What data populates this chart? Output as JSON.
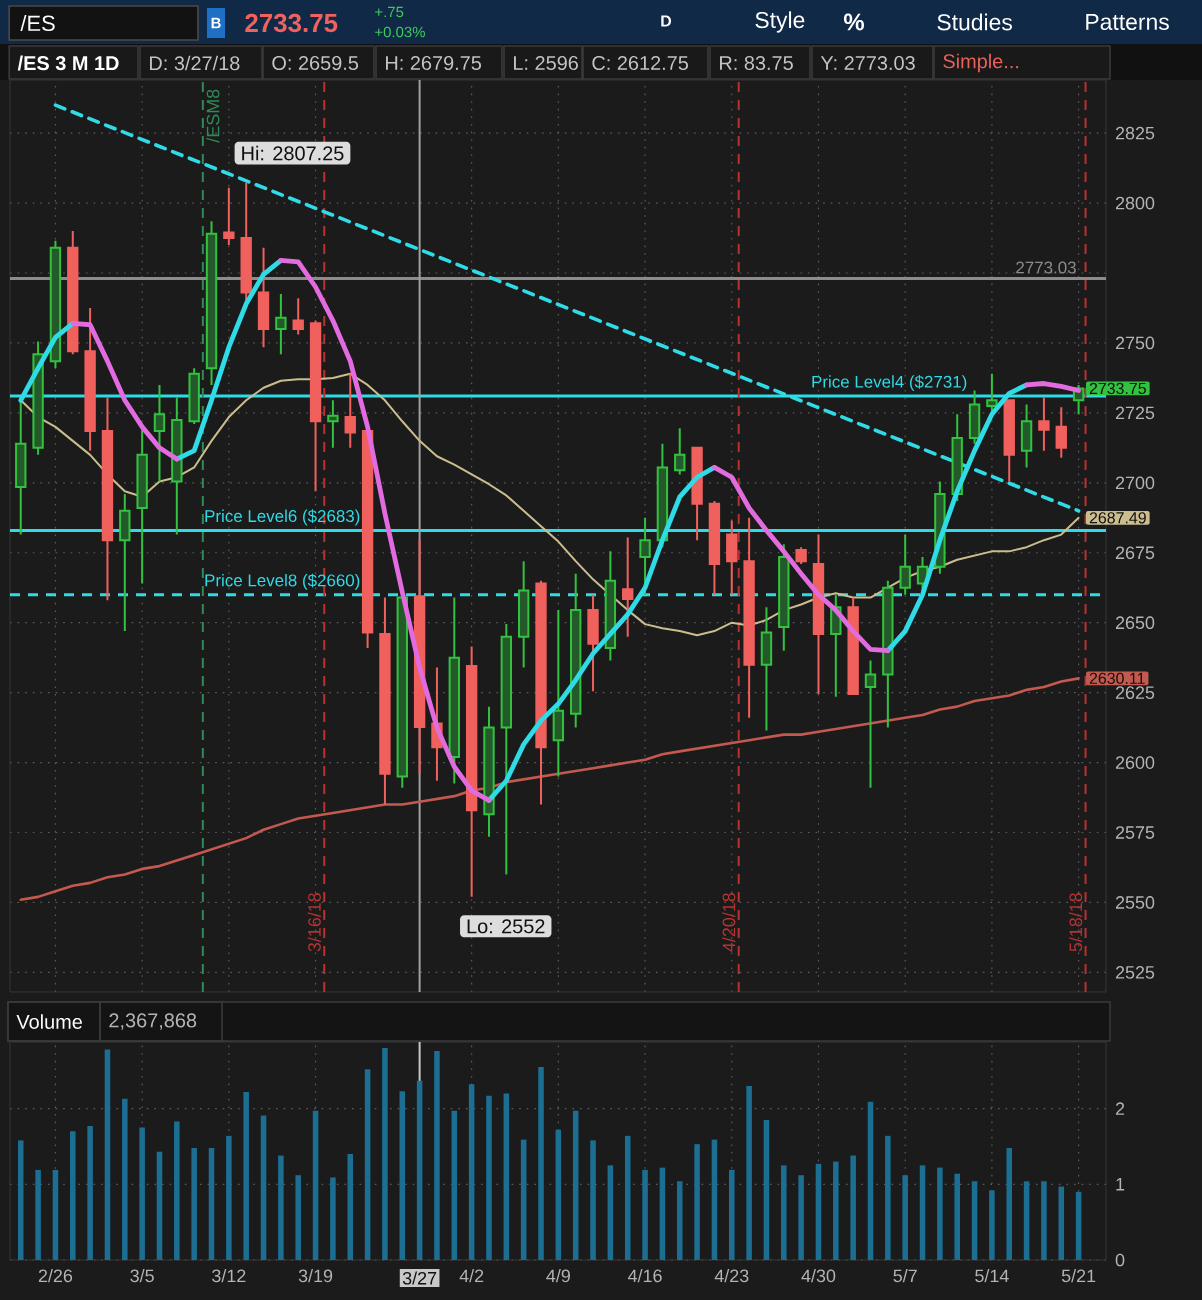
{
  "chart_data": [
    {
      "type": "other",
      "annotations": [
        "/ES",
        "B",
        "2733.75",
        "+.75",
        "+0.03%",
        "D",
        "Style",
        "%",
        "Studies",
        "Patterns"
      ]
    },
    {
      "type": "other",
      "title": "/ES 3 M 1D",
      "annotations": [
        "D: 3/27/18",
        "O: 2659.5",
        "H: 2679.75",
        "L: 2596",
        "C: 2612.75",
        "R: 83.75",
        "Y: 2773.03",
        "Simple..."
      ]
    },
    {
      "type": "candlestick",
      "categories": [
        null,
        null,
        "2/26",
        null,
        null,
        null,
        null,
        "3/5",
        null,
        null,
        null,
        null,
        "3/12",
        null,
        null,
        null,
        null,
        "3/19",
        null,
        null,
        null,
        null,
        null,
        "3/27",
        null,
        null,
        "4/2",
        null,
        null,
        null,
        null,
        "4/9",
        null,
        null,
        null,
        null,
        "4/16",
        null,
        null,
        null,
        null,
        "4/23",
        null,
        null,
        null,
        null,
        "4/30",
        null,
        null,
        null,
        null,
        "5/7",
        null,
        null,
        null,
        null,
        "5/14",
        null,
        null,
        null,
        null,
        "5/21"
      ],
      "ohlc": [
        [
          2698.5,
          2729.5,
          2681.5,
          2714
        ],
        [
          2712.5,
          2750.5,
          2710,
          2746
        ],
        [
          2743.5,
          2786.5,
          2741,
          2784
        ],
        [
          2784,
          2790,
          2746,
          2747
        ],
        [
          2747,
          2762.5,
          2711.5,
          2718.5
        ],
        [
          2718.5,
          2730.5,
          2658,
          2679.5
        ],
        [
          2679.5,
          2696,
          2647,
          2690
        ],
        [
          2691,
          2721,
          2664,
          2710
        ],
        [
          2718.5,
          2735,
          2700.5,
          2724.5
        ],
        [
          2700.5,
          2730.5,
          2681.5,
          2722.5
        ],
        [
          2722,
          2741,
          2721,
          2739
        ],
        [
          2741,
          2793.5,
          2735,
          2789
        ],
        [
          2789.5,
          2805.5,
          2785,
          2787.5
        ],
        [
          2787.5,
          2807.25,
          2765,
          2768
        ],
        [
          2768,
          2784,
          2748.5,
          2755
        ],
        [
          2755,
          2767.5,
          2746,
          2759
        ],
        [
          2758,
          2766,
          2753,
          2755
        ],
        [
          2757,
          2758,
          2697,
          2722
        ],
        [
          2722,
          2729.5,
          2712.5,
          2724
        ],
        [
          2723.5,
          2739,
          2712.5,
          2718
        ],
        [
          2718.5,
          2720,
          2641,
          2646.5
        ],
        [
          2646,
          2659,
          2585,
          2596
        ],
        [
          2595,
          2660,
          2591,
          2659
        ],
        [
          2659.5,
          2679.75,
          2596,
          2612.75
        ],
        [
          2614,
          2634,
          2593.5,
          2605.5
        ],
        [
          2602,
          2659,
          2592.5,
          2637.5
        ],
        [
          2634.5,
          2641.5,
          2552,
          2583
        ],
        [
          2581.5,
          2620,
          2573.5,
          2612.5
        ],
        [
          2612.5,
          2649.5,
          2560,
          2645
        ],
        [
          2645,
          2672,
          2634,
          2661.5
        ],
        [
          2664,
          2665,
          2585,
          2605.5
        ],
        [
          2608,
          2654.5,
          2595,
          2618.5
        ],
        [
          2617.5,
          2667.5,
          2612.5,
          2654.5
        ],
        [
          2654.5,
          2660,
          2625.5,
          2642.5
        ],
        [
          2641,
          2675.5,
          2636.5,
          2665
        ],
        [
          2662,
          2680.5,
          2645,
          2658.5
        ],
        [
          2673.5,
          2687.5,
          2660,
          2679.5
        ],
        [
          2679.5,
          2714,
          2677,
          2705.5
        ],
        [
          2704.5,
          2719.5,
          2703,
          2710
        ],
        [
          2712.5,
          2712.5,
          2679.5,
          2692.5
        ],
        [
          2692.5,
          2693.5,
          2660,
          2671
        ],
        [
          2681.5,
          2686.5,
          2660,
          2672
        ],
        [
          2672,
          2687.5,
          2616,
          2635
        ],
        [
          2635,
          2655.5,
          2611.5,
          2646.5
        ],
        [
          2648.5,
          2678,
          2640,
          2673.5
        ],
        [
          2676,
          2677,
          2671,
          2672
        ],
        [
          2671,
          2681.5,
          2624.5,
          2646
        ],
        [
          2646,
          2660,
          2623.5,
          2655.5
        ],
        [
          2655.5,
          2659,
          2624.5,
          2624.5
        ],
        [
          2627,
          2636.5,
          2591,
          2631.5
        ],
        [
          2631.5,
          2665,
          2612.5,
          2662.5
        ],
        [
          2662.5,
          2681.5,
          2660,
          2670
        ],
        [
          2664,
          2673.5,
          2660,
          2670
        ],
        [
          2670,
          2700.5,
          2667.5,
          2696
        ],
        [
          2696,
          2724.5,
          2693.5,
          2716
        ],
        [
          2716,
          2733,
          2714,
          2728
        ],
        [
          2727.5,
          2739,
          2724.5,
          2729.5
        ],
        [
          2729.5,
          2729.5,
          2700.5,
          2710
        ],
        [
          2711.5,
          2728,
          2705.5,
          2722
        ],
        [
          2722,
          2730.5,
          2711.5,
          2719
        ],
        [
          2720,
          2727,
          2709,
          2712.5
        ],
        [
          2729.5,
          2735,
          2724.5,
          2733.75
        ]
      ],
      "colors": [
        "#33c23f",
        "#33c23f",
        "#33c23f",
        "#f0605d",
        "#f0605d",
        "#f0605d",
        "#33c23f",
        "#33c23f",
        "#33c23f",
        "#33c23f",
        "#33c23f",
        "#33c23f",
        "#f0605d",
        "#f0605d",
        "#f0605d",
        "#33c23f",
        "#f0605d",
        "#f0605d",
        "#33c23f",
        "#f0605d",
        "#f0605d",
        "#f0605d",
        "#33c23f",
        "#f0605d",
        "#f0605d",
        "#33c23f",
        "#f0605d",
        "#33c23f",
        "#33c23f",
        "#33c23f",
        "#f0605d",
        "#33c23f",
        "#33c23f",
        "#f0605d",
        "#33c23f",
        "#f0605d",
        "#33c23f",
        "#33c23f",
        "#33c23f",
        "#f0605d",
        "#f0605d",
        "#f0605d",
        "#f0605d",
        "#33c23f",
        "#33c23f",
        "#f0605d",
        "#f0605d",
        "#33c23f",
        "#f0605d",
        "#33c23f",
        "#33c23f",
        "#33c23f",
        "#33c23f",
        "#33c23f",
        "#33c23f",
        "#33c23f",
        "#33c23f",
        "#f0605d",
        "#33c23f",
        "#f0605d",
        "#f0605d",
        "#33c23f"
      ],
      "series": [
        {
          "type": "line",
          "color": "#2fdbe6",
          "values": [
            2729.5,
            2741,
            2752,
            2757,
            null,
            null,
            null,
            null,
            null,
            2708.5,
            2711.5,
            2729.5,
            2748.5,
            2764,
            2774.5,
            2779.5,
            null,
            null,
            null,
            null,
            null,
            null,
            null,
            null,
            null,
            null,
            null,
            2586.5,
            2593.5,
            2606.5,
            2615,
            2621,
            2629.5,
            2639,
            2646,
            2653,
            2662.5,
            2679.5,
            2695,
            2702,
            2705.5,
            null,
            null,
            null,
            null,
            null,
            null,
            null,
            null,
            null,
            2640,
            2647,
            2660,
            2679.5,
            2697,
            2711.5,
            2724.5,
            2732,
            2735,
            null,
            null,
            null
          ]
        },
        {
          "type": "line",
          "color": "#e26be0",
          "values": [
            null,
            null,
            null,
            2757,
            2756.5,
            2743.5,
            2729.5,
            2720,
            2712.5,
            2708.5,
            null,
            null,
            null,
            null,
            null,
            2779.5,
            2779,
            2770,
            2758,
            2743.5,
            2720,
            2689,
            2661,
            2634,
            2612.5,
            2598.5,
            2590,
            2586.5,
            null,
            null,
            null,
            null,
            null,
            null,
            null,
            null,
            null,
            null,
            null,
            null,
            2705.5,
            2702,
            2691,
            2683,
            2675.5,
            2667.5,
            2660,
            2654.5,
            2647,
            2640.5,
            2640,
            null,
            null,
            null,
            null,
            null,
            null,
            null,
            2735,
            2735.5,
            2734.5,
            2733
          ]
        },
        {
          "type": "line",
          "color": "#cbbd8e",
          "values": [
            2729.5,
            2723.5,
            2720,
            2715,
            2710,
            2703,
            2697,
            2695,
            2700.5,
            2702,
            2705.5,
            2715,
            2723.5,
            2729.5,
            2734,
            2736.5,
            2737,
            2737,
            2737.5,
            2739,
            2735,
            2729.5,
            2722,
            2715,
            2709.5,
            2706.5,
            2703,
            2699.5,
            2695.5,
            2690,
            2684.5,
            2679,
            2672,
            2665.5,
            2660,
            2654.5,
            2649.5,
            2648,
            2647,
            2645.5,
            2647,
            2650,
            2649,
            2651,
            2654.5,
            2656.5,
            2659,
            2660.5,
            2659,
            2659,
            2662.5,
            2666,
            2668.5,
            2670,
            2672.5,
            2674,
            2675.5,
            2675.5,
            2677,
            2679.5,
            2681.5,
            2687.49
          ],
          "value_labels": [
            null,
            null,
            null,
            null,
            null,
            null,
            null,
            null,
            null,
            null,
            null,
            null,
            null,
            null,
            null,
            null,
            null,
            null,
            null,
            null,
            null,
            null,
            null,
            null,
            null,
            null,
            null,
            null,
            null,
            null,
            null,
            null,
            null,
            null,
            null,
            null,
            null,
            null,
            null,
            null,
            null,
            null,
            null,
            null,
            null,
            null,
            null,
            null,
            null,
            null,
            null,
            null,
            null,
            null,
            null,
            null,
            null,
            null,
            null,
            null,
            null,
            "2687.49"
          ]
        },
        {
          "type": "line",
          "color": "#c4594f",
          "values": [
            2551,
            2552,
            2554,
            2556,
            2557,
            2559,
            2560,
            2562,
            2563,
            2565,
            2567,
            2569,
            2571,
            2573,
            2576,
            2578,
            2580,
            2581,
            2582,
            2583,
            2584,
            2585,
            2585,
            2586,
            2587,
            2588,
            2590,
            2591,
            2593,
            2594,
            2595,
            2596,
            2597,
            2598,
            2599,
            2600,
            2601,
            2603,
            2604,
            2605,
            2606,
            2607,
            2608,
            2609,
            2610,
            2610,
            2611,
            2612,
            2613,
            2614,
            2615,
            2616,
            2617,
            2619,
            2620,
            2622,
            2623,
            2624,
            2626,
            2627,
            2629,
            2630.11
          ],
          "value_labels": [
            null,
            null,
            null,
            null,
            null,
            null,
            null,
            null,
            null,
            null,
            null,
            null,
            null,
            null,
            null,
            null,
            null,
            null,
            null,
            null,
            null,
            null,
            null,
            null,
            null,
            null,
            null,
            null,
            null,
            null,
            null,
            null,
            null,
            null,
            null,
            null,
            null,
            null,
            null,
            null,
            null,
            null,
            null,
            null,
            null,
            null,
            null,
            null,
            null,
            null,
            null,
            null,
            null,
            null,
            null,
            null,
            null,
            null,
            null,
            null,
            null,
            "2630.11"
          ]
        },
        {
          "type": "line",
          "color": "#2fdbe6",
          "line_style": "dashed",
          "x": [
            "2/26",
            "5/21"
          ],
          "values": [
            2835,
            2690
          ]
        }
      ],
      "ylim": [
        2518,
        2844
      ],
      "yticks": [
        2525,
        2550,
        2575,
        2600,
        2625,
        2650,
        2675,
        2700,
        2725,
        2750,
        {
          "value": 2775,
          "label": null
        },
        2800,
        2825
      ],
      "grid": true,
      "tick_labels": "y",
      "ref_lines": [
        {
          "axis": "y",
          "value": 2731,
          "label": "Price Level4 ($2731)",
          "color": "#2fdbe6"
        },
        {
          "axis": "y",
          "value": 2683,
          "label": "Price Level6 ($2683)",
          "color": "#2fdbe6"
        },
        {
          "axis": "y",
          "value": 2660,
          "label": "Price Level8 ($2660)",
          "color": "#2fdbe6",
          "line_style": "dashed"
        },
        {
          "axis": "y",
          "value": 2773.03,
          "label": "2773.03",
          "color": "#8c8c8c"
        },
        {
          "axis": "x",
          "value": "3/27",
          "color": "#a0a0a0"
        }
      ],
      "annotations": [
        "/ESM8",
        "3/16/18",
        "4/20/18",
        "5/18/18",
        "Hi: 2807.25",
        {
          "text": "Lo: 2552",
          "x": "4/2",
          "y": 2552
        },
        {
          "text": "2733.75",
          "x": "5/21",
          "y": 2733.75
        }
      ]
    },
    {
      "type": "bar",
      "title": "Volume",
      "annotations": [
        "2,367,868"
      ],
      "categories": [
        null,
        null,
        "2/26",
        null,
        null,
        null,
        null,
        "3/5",
        null,
        null,
        null,
        null,
        "3/12",
        null,
        null,
        null,
        null,
        "3/19",
        null,
        null,
        null,
        null,
        null,
        "3/27",
        null,
        null,
        "4/2",
        null,
        null,
        null,
        null,
        "4/9",
        null,
        null,
        null,
        null,
        "4/16",
        null,
        null,
        null,
        null,
        "4/23",
        null,
        null,
        null,
        null,
        "4/30",
        null,
        null,
        null,
        null,
        "5/7",
        null,
        null,
        null,
        null,
        "5/14",
        null,
        null,
        null,
        null,
        "5/21"
      ],
      "values": [
        1.58,
        1.19,
        1.19,
        1.7,
        1.77,
        2.78,
        2.13,
        1.75,
        1.43,
        1.83,
        1.48,
        1.48,
        1.64,
        2.22,
        1.91,
        1.38,
        1.12,
        1.97,
        1.09,
        1.4,
        2.52,
        2.8,
        2.23,
        2.367868,
        2.76,
        1.97,
        2.32,
        2.17,
        2.2,
        1.59,
        2.55,
        1.72,
        1.97,
        1.58,
        1.25,
        1.64,
        1.19,
        1.22,
        1.04,
        1.53,
        1.59,
        1.19,
        2.3,
        1.85,
        1.25,
        1.12,
        1.27,
        1.3,
        1.38,
        2.09,
        1.64,
        1.12,
        1.25,
        1.22,
        1.14,
        1.04,
        0.92,
        1.48,
        1.04,
        1.04,
        0.97,
        0.9
      ],
      "color": "#1c6e93",
      "ylim": [
        0,
        2.88
      ],
      "yticks": [
        0,
        1,
        2
      ],
      "grid": true,
      "ref_lines": [
        {
          "axis": "x",
          "value": "3/27",
          "color": "#c8c8c8"
        }
      ]
    }
  ]
}
